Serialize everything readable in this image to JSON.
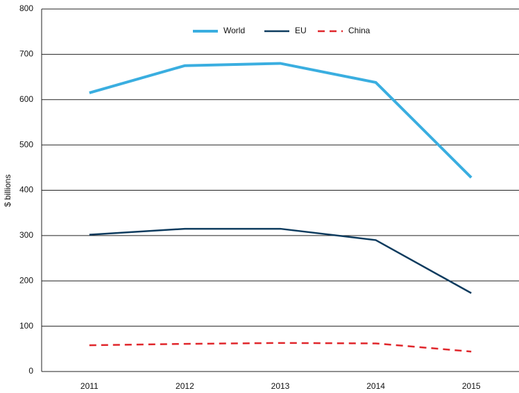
{
  "chart_data": {
    "type": "line",
    "y_label": "$ billions",
    "categories": [
      "2011",
      "2012",
      "2013",
      "2014",
      "2015"
    ],
    "series": [
      {
        "name": "World",
        "color": "#3aaee0",
        "values": [
          615,
          675,
          680,
          638,
          428
        ]
      },
      {
        "name": "EU",
        "color": "#0d3b5e",
        "values": [
          302,
          315,
          315,
          290,
          173
        ]
      },
      {
        "name": "China",
        "color": "#e0262b",
        "dashed": true,
        "values": [
          58,
          61,
          63,
          62,
          44
        ]
      }
    ],
    "ylim": [
      0,
      800
    ],
    "yticks": [
      0,
      100,
      200,
      300,
      400,
      500,
      600,
      700,
      800
    ],
    "grid": true,
    "legend": "top"
  }
}
